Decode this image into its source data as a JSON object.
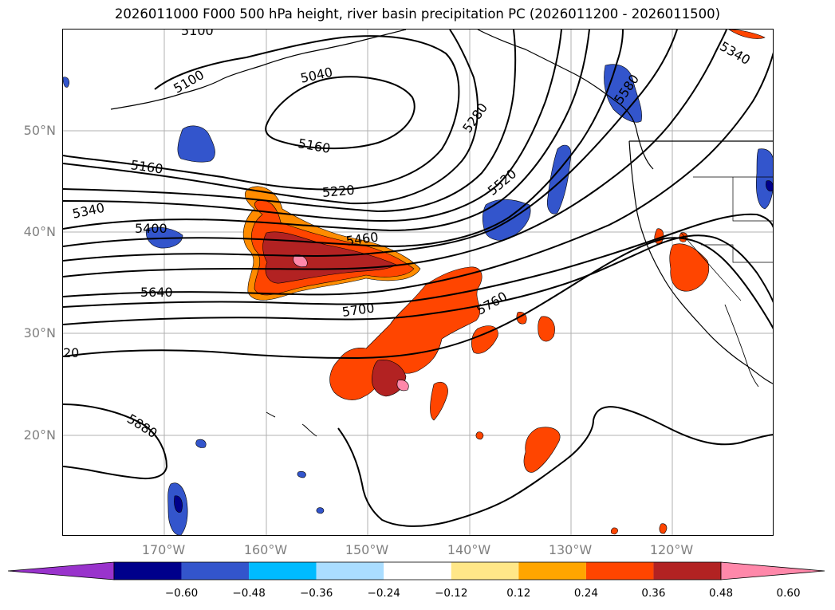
{
  "title": "2026011000 F000 500 hPa height, river basin precipitation PC (2026011200 - 2026011500)",
  "map": {
    "lat_labels": [
      "50°N",
      "40°N",
      "30°N",
      "20°N"
    ],
    "lat_values": [
      50,
      40,
      30,
      20
    ],
    "lon_labels": [
      "170°W",
      "160°W",
      "150°W",
      "140°W",
      "130°W",
      "120°W"
    ],
    "lon_values": [
      -170,
      -160,
      -150,
      -140,
      -130,
      -120
    ],
    "extent": {
      "lon_min": -180,
      "lon_max": -110,
      "lat_min": 10,
      "lat_max": 60
    },
    "contour_labels": [
      "5100",
      "5040",
      "5160",
      "5160",
      "5220",
      "5340",
      "5400",
      "5460",
      "5640",
      "5700",
      "5760",
      "5520",
      "5280",
      "5880",
      "5580",
      "5340",
      "20",
      "5100"
    ],
    "contour_colors": {
      "line": "#000000",
      "grid": "#b0b0b0"
    }
  },
  "colorbar": {
    "tick_labels": [
      "−0.60",
      "−0.48",
      "−0.36",
      "−0.24",
      "−0.12",
      "0.12",
      "0.24",
      "0.36",
      "0.48",
      "0.60"
    ],
    "colors": [
      "#9933cc",
      "#00008b",
      "#3355cc",
      "#00bbff",
      "#aaddff",
      "#ffffff",
      "#ffe788",
      "#ffa500",
      "#ff4500",
      "#b22222",
      "#ff88aa"
    ]
  }
}
